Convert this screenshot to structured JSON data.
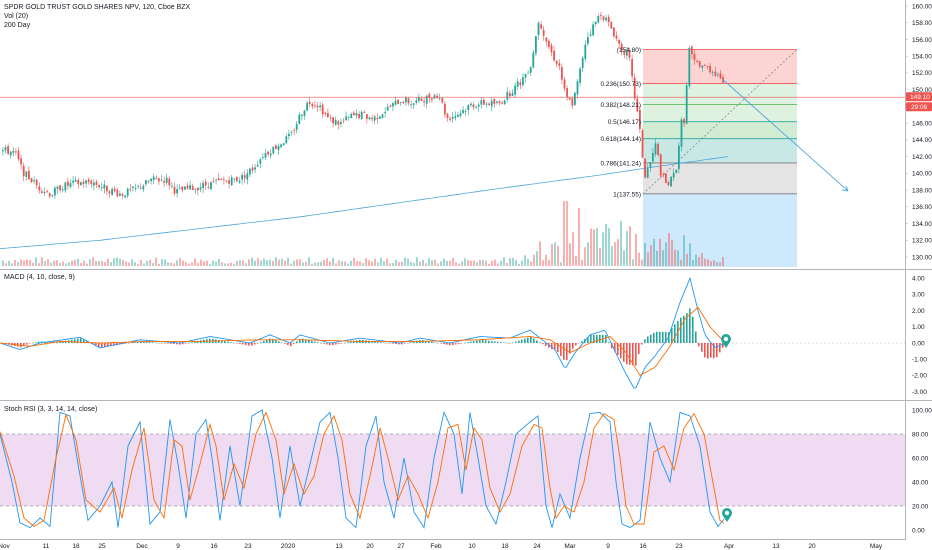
{
  "colors": {
    "up": "#26a69a",
    "down": "#ef5350",
    "ma": "#4ea6dc",
    "macd_line": "#2196f3",
    "signal_line": "#ff6d00",
    "stoch_k": "#2196f3",
    "stoch_d": "#ff6d00",
    "rsi_band": "#e1bee7",
    "price_tag": "#ef5350",
    "marker": "#26a69a"
  },
  "legend": {
    "symbol": "SPDR GOLD TRUST GOLD SHARES NPV, 120, Cboe BZX",
    "vol": "Vol (20)",
    "ma": "200 Day",
    "macd": "MACD (4, 10, close, 9)",
    "stoch": "Stoch RSI (3, 3, 14, 14, close)"
  },
  "price_axis": {
    "ticks": [
      "160.00",
      "158.00",
      "156.00",
      "154.00",
      "152.00",
      "150.00",
      "148.00",
      "146.00",
      "144.00",
      "142.00",
      "140.00",
      "138.00",
      "136.00",
      "134.00",
      "132.00",
      "130.00"
    ],
    "last_price": "149.10",
    "countdown": "29:06"
  },
  "macd_axis": {
    "ticks": [
      "4.00",
      "3.00",
      "2.00",
      "1.00",
      "0.00",
      "-1.00",
      "-2.00",
      "-3.00"
    ]
  },
  "stoch_axis": {
    "ticks": [
      "100.00",
      "80.00",
      "60.00",
      "40.00",
      "20.00",
      "0.00"
    ]
  },
  "time_axis": {
    "labels": [
      "Nov",
      "11",
      "18",
      "25",
      "Dec",
      "9",
      "16",
      "23",
      "2020",
      "13",
      "20",
      "27",
      "Feb",
      "10",
      "18",
      "24",
      "Mar",
      "9",
      "16",
      "23",
      "Apr",
      "13",
      "20",
      "May"
    ]
  },
  "fib_levels": [
    {
      "label": "(154.80)"
    },
    {
      "label": "0.236(150.73)"
    },
    {
      "label": "0.382(148.21)"
    },
    {
      "label": "0.5(146.17)"
    },
    {
      "label": "0.618(144.14)"
    },
    {
      "label": "0.786(141.24)"
    },
    {
      "label": "1(137.55)"
    }
  ],
  "chart_data": {
    "type": "candlestick",
    "title": "SPDR GOLD TRUST GOLD SHARES NPV, 120, Cboe BZX",
    "ylim": [
      129,
      161
    ],
    "last_price": 149.1,
    "fib_retracement": {
      "high": 154.8,
      "low": 137.55,
      "levels": [
        [
          0,
          154.8
        ],
        [
          0.236,
          150.73
        ],
        [
          0.382,
          148.21
        ],
        [
          0.5,
          146.17
        ],
        [
          0.618,
          144.14
        ],
        [
          0.786,
          141.24
        ],
        [
          1,
          137.55
        ]
      ]
    },
    "price_path": [
      [
        0,
        142.8
      ],
      [
        14,
        142.5
      ],
      [
        22,
        140.2
      ],
      [
        38,
        138.3
      ],
      [
        50,
        137.5
      ],
      [
        60,
        138.4
      ],
      [
        75,
        138.8
      ],
      [
        90,
        139.0
      ],
      [
        105,
        138.2
      ],
      [
        120,
        137.5
      ],
      [
        135,
        138.1
      ],
      [
        150,
        139.2
      ],
      [
        165,
        139.3
      ],
      [
        175,
        137.8
      ],
      [
        190,
        138.2
      ],
      [
        205,
        138.6
      ],
      [
        222,
        139.1
      ],
      [
        240,
        139.4
      ],
      [
        252,
        140.6
      ],
      [
        262,
        142.2
      ],
      [
        275,
        143.2
      ],
      [
        290,
        144.5
      ],
      [
        300,
        147.2
      ],
      [
        308,
        148.6
      ],
      [
        318,
        148.2
      ],
      [
        328,
        146.4
      ],
      [
        340,
        146.0
      ],
      [
        350,
        146.8
      ],
      [
        362,
        147.0
      ],
      [
        372,
        146.5
      ],
      [
        385,
        147.6
      ],
      [
        400,
        148.8
      ],
      [
        412,
        148.4
      ],
      [
        425,
        149.0
      ],
      [
        438,
        149.5
      ],
      [
        446,
        146.6
      ],
      [
        456,
        147.0
      ],
      [
        470,
        148.2
      ],
      [
        484,
        148.4
      ],
      [
        498,
        148.3
      ],
      [
        510,
        149.8
      ],
      [
        520,
        151.0
      ],
      [
        530,
        153.0
      ],
      [
        538,
        158.5
      ],
      [
        545,
        156.0
      ],
      [
        552,
        154.0
      ],
      [
        558,
        153.0
      ],
      [
        565,
        149.0
      ],
      [
        572,
        148.3
      ],
      [
        578,
        151.5
      ],
      [
        585,
        156.0
      ],
      [
        592,
        157.5
      ],
      [
        600,
        159.2
      ],
      [
        606,
        158.2
      ],
      [
        612,
        157.0
      ],
      [
        620,
        155.0
      ],
      [
        628,
        154.0
      ],
      [
        632,
        150.5
      ],
      [
        638,
        146.0
      ],
      [
        644,
        139.5
      ],
      [
        650,
        141.5
      ],
      [
        655,
        143.5
      ],
      [
        660,
        140.0
      ],
      [
        666,
        138.5
      ],
      [
        672,
        139.5
      ],
      [
        676,
        141.0
      ],
      [
        680,
        146.0
      ],
      [
        684,
        146.5
      ],
      [
        688,
        155.0
      ],
      [
        693,
        153.2
      ],
      [
        700,
        153.0
      ],
      [
        708,
        152.5
      ],
      [
        715,
        152.0
      ],
      [
        720,
        151.5
      ],
      [
        725,
        149.1
      ]
    ],
    "ma_200": [
      [
        0,
        131.0
      ],
      [
        100,
        132.0
      ],
      [
        200,
        133.4
      ],
      [
        300,
        134.8
      ],
      [
        400,
        136.5
      ],
      [
        500,
        138.2
      ],
      [
        600,
        139.8
      ],
      [
        650,
        140.7
      ],
      [
        728,
        142.0
      ]
    ],
    "projection": [
      [
        723,
        151.2
      ],
      [
        848,
        137.9
      ]
    ],
    "macd_ylim": [
      -3.5,
      4.5
    ],
    "macd_path": [
      [
        0,
        0.0
      ],
      [
        20,
        -0.4
      ],
      [
        40,
        0.0
      ],
      [
        80,
        0.35
      ],
      [
        100,
        -0.3
      ],
      [
        140,
        0.2
      ],
      [
        180,
        0.0
      ],
      [
        210,
        0.4
      ],
      [
        250,
        0.0
      ],
      [
        270,
        0.5
      ],
      [
        290,
        0.0
      ],
      [
        300,
        0.5
      ],
      [
        330,
        0.0
      ],
      [
        360,
        0.3
      ],
      [
        400,
        0.0
      ],
      [
        420,
        0.3
      ],
      [
        450,
        0.0
      ],
      [
        480,
        0.4
      ],
      [
        510,
        0.3
      ],
      [
        530,
        0.8
      ],
      [
        540,
        0.3
      ],
      [
        555,
        -0.4
      ],
      [
        565,
        -1.6
      ],
      [
        575,
        -0.6
      ],
      [
        590,
        0.5
      ],
      [
        605,
        0.8
      ],
      [
        615,
        -0.5
      ],
      [
        625,
        -1.8
      ],
      [
        635,
        -2.9
      ],
      [
        645,
        -1.5
      ],
      [
        655,
        -0.8
      ],
      [
        668,
        0.3
      ],
      [
        680,
        2.5
      ],
      [
        690,
        4.0
      ],
      [
        698,
        2.0
      ],
      [
        705,
        0.5
      ],
      [
        715,
        -0.3
      ],
      [
        725,
        0.0
      ]
    ],
    "macd_signal": [
      [
        0,
        0.0
      ],
      [
        30,
        -0.2
      ],
      [
        60,
        0.1
      ],
      [
        100,
        0.0
      ],
      [
        150,
        0.1
      ],
      [
        200,
        0.1
      ],
      [
        260,
        0.2
      ],
      [
        300,
        0.2
      ],
      [
        360,
        0.1
      ],
      [
        420,
        0.1
      ],
      [
        480,
        0.2
      ],
      [
        530,
        0.4
      ],
      [
        550,
        0.2
      ],
      [
        570,
        -0.6
      ],
      [
        590,
        0.0
      ],
      [
        610,
        0.4
      ],
      [
        625,
        -0.5
      ],
      [
        640,
        -2.0
      ],
      [
        655,
        -1.5
      ],
      [
        670,
        -0.2
      ],
      [
        685,
        1.5
      ],
      [
        698,
        2.2
      ],
      [
        710,
        1.0
      ],
      [
        725,
        0.0
      ]
    ],
    "stoch_ylim": [
      -5,
      105
    ],
    "stoch_k": [
      [
        0,
        80
      ],
      [
        12,
        40
      ],
      [
        20,
        6
      ],
      [
        30,
        2
      ],
      [
        40,
        10
      ],
      [
        50,
        3
      ],
      [
        60,
        98
      ],
      [
        70,
        95
      ],
      [
        78,
        55
      ],
      [
        88,
        8
      ],
      [
        100,
        20
      ],
      [
        112,
        40
      ],
      [
        118,
        2
      ],
      [
        128,
        70
      ],
      [
        140,
        90
      ],
      [
        150,
        5
      ],
      [
        160,
        15
      ],
      [
        170,
        92
      ],
      [
        178,
        55
      ],
      [
        186,
        10
      ],
      [
        196,
        80
      ],
      [
        206,
        92
      ],
      [
        212,
        60
      ],
      [
        220,
        8
      ],
      [
        230,
        70
      ],
      [
        240,
        20
      ],
      [
        252,
        95
      ],
      [
        262,
        100
      ],
      [
        272,
        60
      ],
      [
        280,
        10
      ],
      [
        290,
        70
      ],
      [
        300,
        20
      ],
      [
        310,
        55
      ],
      [
        320,
        90
      ],
      [
        330,
        98
      ],
      [
        338,
        60
      ],
      [
        346,
        10
      ],
      [
        356,
        2
      ],
      [
        366,
        70
      ],
      [
        376,
        95
      ],
      [
        384,
        40
      ],
      [
        394,
        10
      ],
      [
        404,
        60
      ],
      [
        414,
        15
      ],
      [
        424,
        2
      ],
      [
        434,
        60
      ],
      [
        444,
        98
      ],
      [
        454,
        80
      ],
      [
        462,
        30
      ],
      [
        470,
        98
      ],
      [
        478,
        60
      ],
      [
        486,
        20
      ],
      [
        496,
        5
      ],
      [
        506,
        40
      ],
      [
        516,
        80
      ],
      [
        530,
        90
      ],
      [
        538,
        95
      ],
      [
        546,
        20
      ],
      [
        552,
        2
      ],
      [
        560,
        30
      ],
      [
        570,
        10
      ],
      [
        580,
        60
      ],
      [
        590,
        97
      ],
      [
        600,
        98
      ],
      [
        610,
        90
      ],
      [
        616,
        40
      ],
      [
        622,
        5
      ],
      [
        630,
        2
      ],
      [
        640,
        8
      ],
      [
        650,
        90
      ],
      [
        660,
        60
      ],
      [
        670,
        40
      ],
      [
        680,
        98
      ],
      [
        690,
        95
      ],
      [
        700,
        70
      ],
      [
        710,
        15
      ],
      [
        718,
        3
      ],
      [
        725,
        10
      ]
    ],
    "stoch_d": [
      [
        0,
        82
      ],
      [
        14,
        45
      ],
      [
        24,
        10
      ],
      [
        34,
        3
      ],
      [
        44,
        8
      ],
      [
        56,
        60
      ],
      [
        66,
        96
      ],
      [
        76,
        75
      ],
      [
        86,
        25
      ],
      [
        100,
        15
      ],
      [
        114,
        35
      ],
      [
        122,
        10
      ],
      [
        132,
        50
      ],
      [
        144,
        85
      ],
      [
        154,
        25
      ],
      [
        164,
        10
      ],
      [
        174,
        75
      ],
      [
        182,
        70
      ],
      [
        190,
        25
      ],
      [
        200,
        55
      ],
      [
        210,
        88
      ],
      [
        216,
        70
      ],
      [
        224,
        25
      ],
      [
        234,
        55
      ],
      [
        244,
        35
      ],
      [
        256,
        80
      ],
      [
        266,
        98
      ],
      [
        276,
        75
      ],
      [
        284,
        30
      ],
      [
        294,
        55
      ],
      [
        304,
        30
      ],
      [
        314,
        45
      ],
      [
        324,
        80
      ],
      [
        334,
        95
      ],
      [
        342,
        75
      ],
      [
        350,
        30
      ],
      [
        360,
        10
      ],
      [
        370,
        45
      ],
      [
        380,
        85
      ],
      [
        388,
        60
      ],
      [
        398,
        25
      ],
      [
        408,
        45
      ],
      [
        418,
        30
      ],
      [
        428,
        10
      ],
      [
        438,
        40
      ],
      [
        448,
        85
      ],
      [
        458,
        88
      ],
      [
        466,
        50
      ],
      [
        474,
        85
      ],
      [
        482,
        75
      ],
      [
        490,
        35
      ],
      [
        500,
        15
      ],
      [
        510,
        30
      ],
      [
        522,
        70
      ],
      [
        534,
        88
      ],
      [
        542,
        85
      ],
      [
        550,
        35
      ],
      [
        556,
        10
      ],
      [
        564,
        20
      ],
      [
        574,
        15
      ],
      [
        584,
        40
      ],
      [
        594,
        85
      ],
      [
        604,
        97
      ],
      [
        614,
        92
      ],
      [
        620,
        60
      ],
      [
        626,
        20
      ],
      [
        634,
        5
      ],
      [
        644,
        5
      ],
      [
        654,
        65
      ],
      [
        664,
        70
      ],
      [
        674,
        50
      ],
      [
        684,
        85
      ],
      [
        694,
        97
      ],
      [
        704,
        80
      ],
      [
        714,
        35
      ],
      [
        720,
        8
      ],
      [
        725,
        5
      ]
    ]
  }
}
